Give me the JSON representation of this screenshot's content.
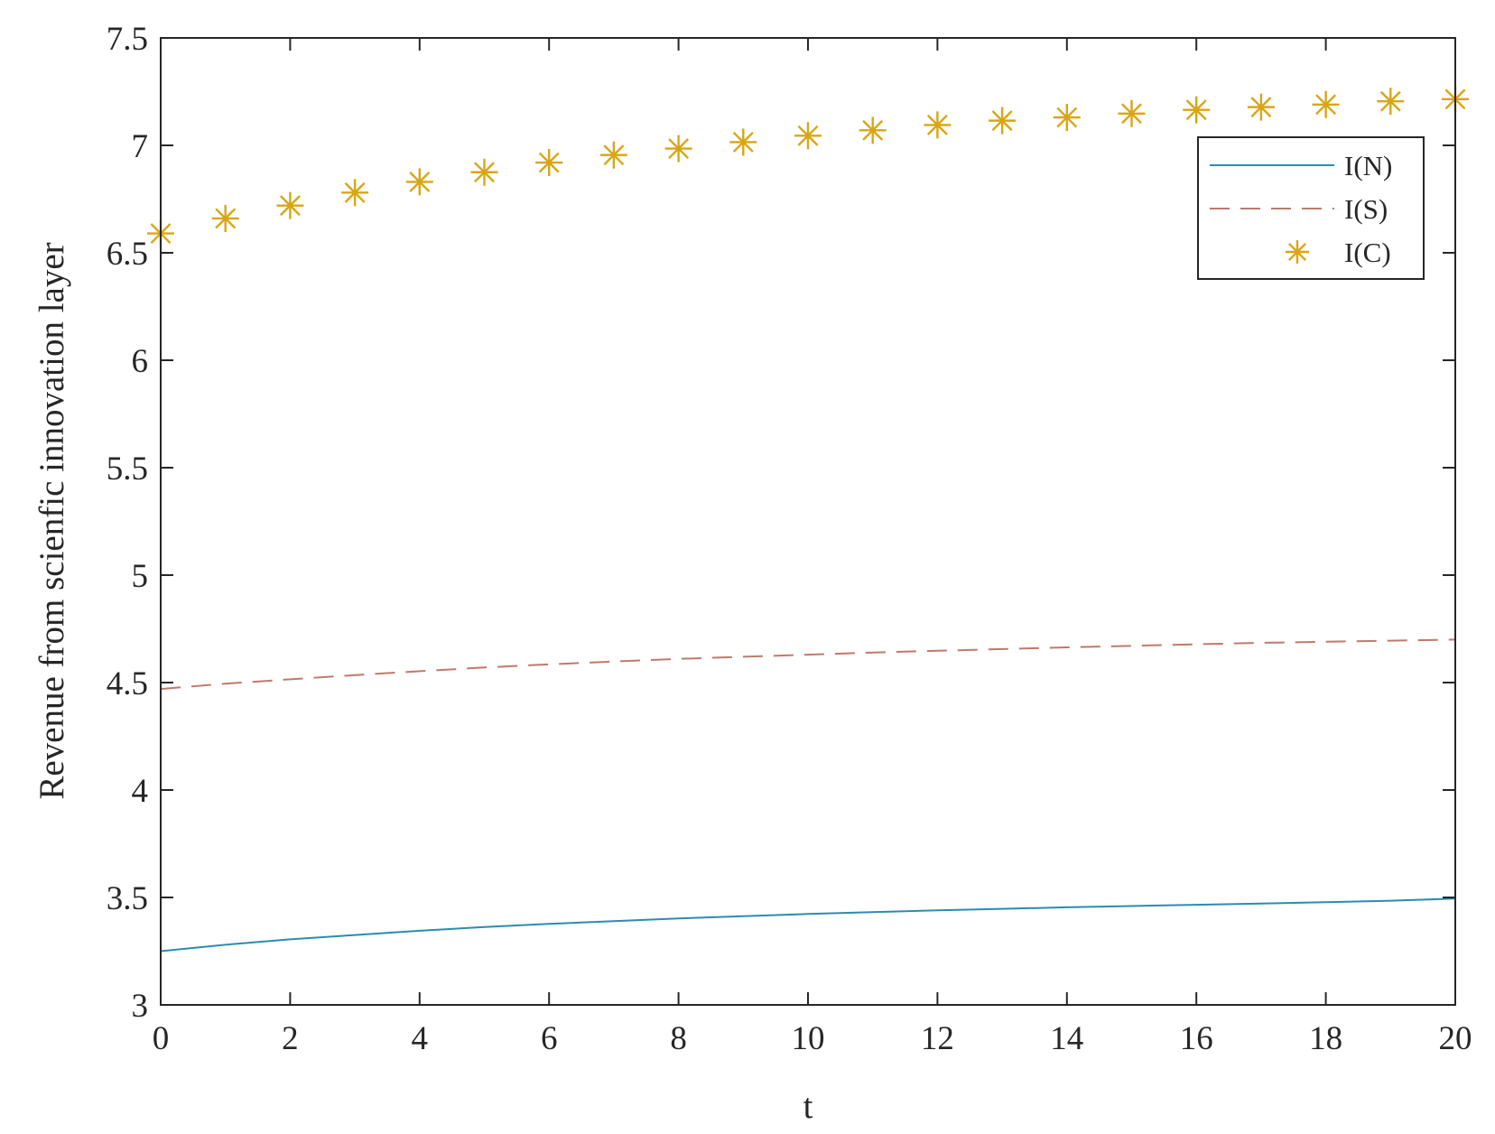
{
  "chart_data": {
    "type": "line",
    "xlabel": "t",
    "ylabel": "Revenue from scienfic innovation layer",
    "xlim": [
      0,
      20
    ],
    "ylim": [
      3,
      7.5
    ],
    "xticks": [
      0,
      2,
      4,
      6,
      8,
      10,
      12,
      14,
      16,
      18,
      20
    ],
    "yticks": [
      "3",
      "3.5",
      "4",
      "4.5",
      "5",
      "5.5",
      "6",
      "6.5",
      "7",
      "7.5"
    ],
    "grid": false,
    "legend_position": "top-right",
    "x": [
      0,
      1,
      2,
      3,
      4,
      5,
      6,
      7,
      8,
      9,
      10,
      11,
      12,
      13,
      14,
      15,
      16,
      17,
      18,
      19,
      20
    ],
    "series": [
      {
        "name": "I(N)",
        "style": "solid",
        "color": "#2b8cb0",
        "values": [
          3.25,
          3.28,
          3.305,
          3.325,
          3.345,
          3.362,
          3.377,
          3.39,
          3.402,
          3.413,
          3.423,
          3.432,
          3.44,
          3.447,
          3.454,
          3.46,
          3.466,
          3.472,
          3.478,
          3.485,
          3.495
        ]
      },
      {
        "name": "I(S)",
        "style": "dashed",
        "color": "#c0796a",
        "values": [
          4.47,
          4.495,
          4.515,
          4.535,
          4.553,
          4.57,
          4.585,
          4.598,
          4.61,
          4.62,
          4.63,
          4.64,
          4.648,
          4.656,
          4.664,
          4.671,
          4.678,
          4.685,
          4.69,
          4.695,
          4.7
        ]
      },
      {
        "name": "I(C)",
        "style": "asterisk",
        "color": "#d9a514",
        "values": [
          6.59,
          6.66,
          6.72,
          6.78,
          6.83,
          6.875,
          6.92,
          6.955,
          6.985,
          7.015,
          7.045,
          7.07,
          7.095,
          7.115,
          7.13,
          7.148,
          7.165,
          7.178,
          7.19,
          7.205,
          7.215
        ]
      }
    ]
  }
}
